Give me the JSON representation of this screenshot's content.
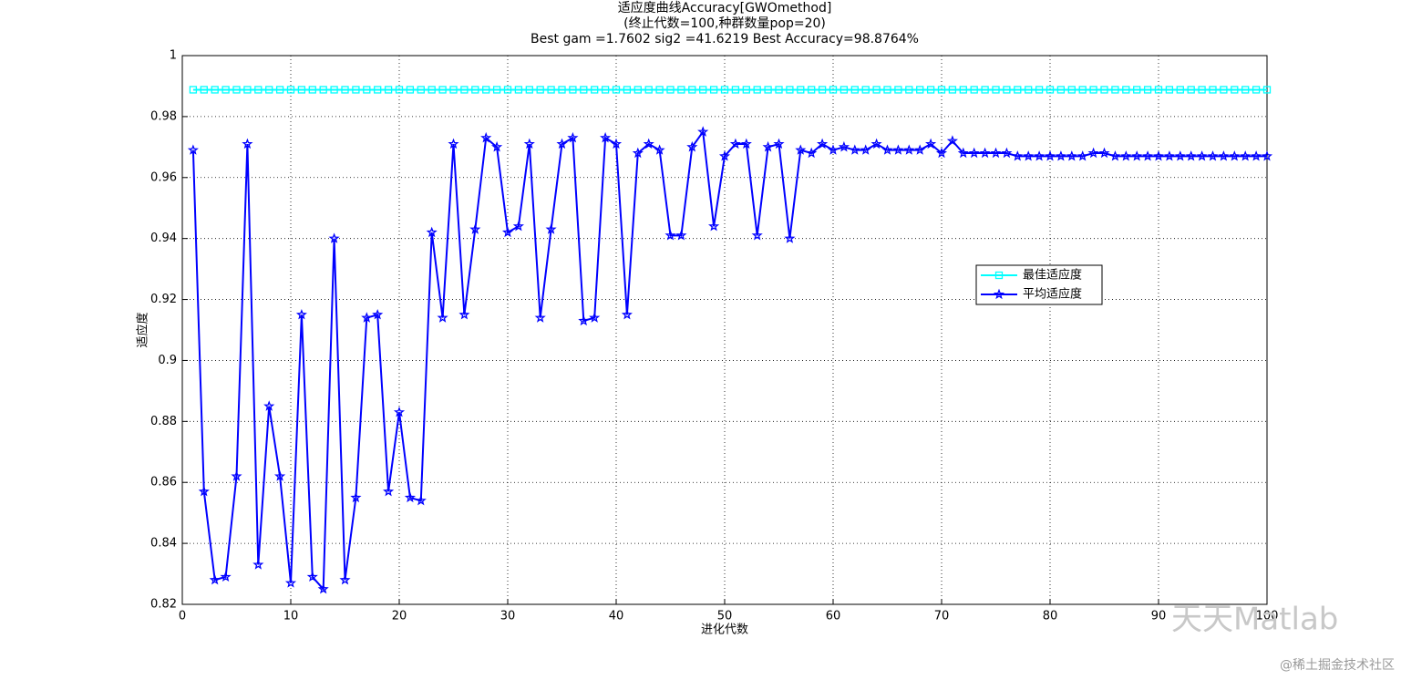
{
  "chart_data": {
    "type": "line",
    "title": [
      "适应度曲线Accuracy[GWOmethod]",
      "(终止代数=100,种群数量pop=20)",
      "Best gam =1.7602 sig2 =41.6219 Best Accuracy=98.8764%"
    ],
    "x_label": "进化代数",
    "y_label": "适应度",
    "x": [
      1,
      2,
      3,
      4,
      5,
      6,
      7,
      8,
      9,
      10,
      11,
      12,
      13,
      14,
      15,
      16,
      17,
      18,
      19,
      20,
      21,
      22,
      23,
      24,
      25,
      26,
      27,
      28,
      29,
      30,
      31,
      32,
      33,
      34,
      35,
      36,
      37,
      38,
      39,
      40,
      41,
      42,
      43,
      44,
      45,
      46,
      47,
      48,
      49,
      50,
      51,
      52,
      53,
      54,
      55,
      56,
      57,
      58,
      59,
      60,
      61,
      62,
      63,
      64,
      65,
      66,
      67,
      68,
      69,
      70,
      71,
      72,
      73,
      74,
      75,
      76,
      77,
      78,
      79,
      80,
      81,
      82,
      83,
      84,
      85,
      86,
      87,
      88,
      89,
      90,
      91,
      92,
      93,
      94,
      95,
      96,
      97,
      98,
      99,
      100
    ],
    "series": [
      {
        "name": "最佳适应度",
        "color": "#00ffff",
        "marker": "square",
        "values": [
          0.9888,
          0.9888,
          0.9888,
          0.9888,
          0.9888,
          0.9888,
          0.9888,
          0.9888,
          0.9888,
          0.9888,
          0.9888,
          0.9888,
          0.9888,
          0.9888,
          0.9888,
          0.9888,
          0.9888,
          0.9888,
          0.9888,
          0.9888,
          0.9888,
          0.9888,
          0.9888,
          0.9888,
          0.9888,
          0.9888,
          0.9888,
          0.9888,
          0.9888,
          0.9888,
          0.9888,
          0.9888,
          0.9888,
          0.9888,
          0.9888,
          0.9888,
          0.9888,
          0.9888,
          0.9888,
          0.9888,
          0.9888,
          0.9888,
          0.9888,
          0.9888,
          0.9888,
          0.9888,
          0.9888,
          0.9888,
          0.9888,
          0.9888,
          0.9888,
          0.9888,
          0.9888,
          0.9888,
          0.9888,
          0.9888,
          0.9888,
          0.9888,
          0.9888,
          0.9888,
          0.9888,
          0.9888,
          0.9888,
          0.9888,
          0.9888,
          0.9888,
          0.9888,
          0.9888,
          0.9888,
          0.9888,
          0.9888,
          0.9888,
          0.9888,
          0.9888,
          0.9888,
          0.9888,
          0.9888,
          0.9888,
          0.9888,
          0.9888,
          0.9888,
          0.9888,
          0.9888,
          0.9888,
          0.9888,
          0.9888,
          0.9888,
          0.9888,
          0.9888,
          0.9888,
          0.9888,
          0.9888,
          0.9888,
          0.9888,
          0.9888,
          0.9888,
          0.9888,
          0.9888,
          0.9888,
          0.9888
        ]
      },
      {
        "name": "平均适应度",
        "color": "#0000ff",
        "marker": "star",
        "values": [
          0.969,
          0.857,
          0.828,
          0.829,
          0.862,
          0.971,
          0.833,
          0.885,
          0.862,
          0.827,
          0.915,
          0.829,
          0.825,
          0.94,
          0.828,
          0.855,
          0.914,
          0.915,
          0.857,
          0.883,
          0.855,
          0.854,
          0.942,
          0.914,
          0.971,
          0.915,
          0.943,
          0.973,
          0.97,
          0.942,
          0.944,
          0.971,
          0.914,
          0.943,
          0.971,
          0.973,
          0.913,
          0.914,
          0.973,
          0.971,
          0.915,
          0.968,
          0.971,
          0.969,
          0.941,
          0.941,
          0.97,
          0.975,
          0.944,
          0.967,
          0.971,
          0.971,
          0.941,
          0.97,
          0.971,
          0.94,
          0.969,
          0.968,
          0.971,
          0.969,
          0.97,
          0.969,
          0.969,
          0.971,
          0.969,
          0.969,
          0.969,
          0.969,
          0.971,
          0.968,
          0.972,
          0.968,
          0.968,
          0.968,
          0.968,
          0.968,
          0.967,
          0.967,
          0.967,
          0.967,
          0.967,
          0.967,
          0.967,
          0.968,
          0.968,
          0.967,
          0.967,
          0.967,
          0.967,
          0.967,
          0.967,
          0.967,
          0.967,
          0.967,
          0.967,
          0.967,
          0.967,
          0.967,
          0.967,
          0.967
        ]
      }
    ],
    "xlim": [
      0,
      100
    ],
    "xticks": [
      0,
      10,
      20,
      30,
      40,
      50,
      60,
      70,
      80,
      90,
      100
    ],
    "ylim": [
      0.82,
      1
    ],
    "yticks": [
      0.82,
      0.84,
      0.86,
      0.88,
      0.9,
      0.92,
      0.94,
      0.96,
      0.98,
      1
    ],
    "grid": true,
    "legend_position": "east"
  },
  "watermark": {
    "brand": "天天Matlab",
    "source": "@稀土掘金技术社区"
  }
}
